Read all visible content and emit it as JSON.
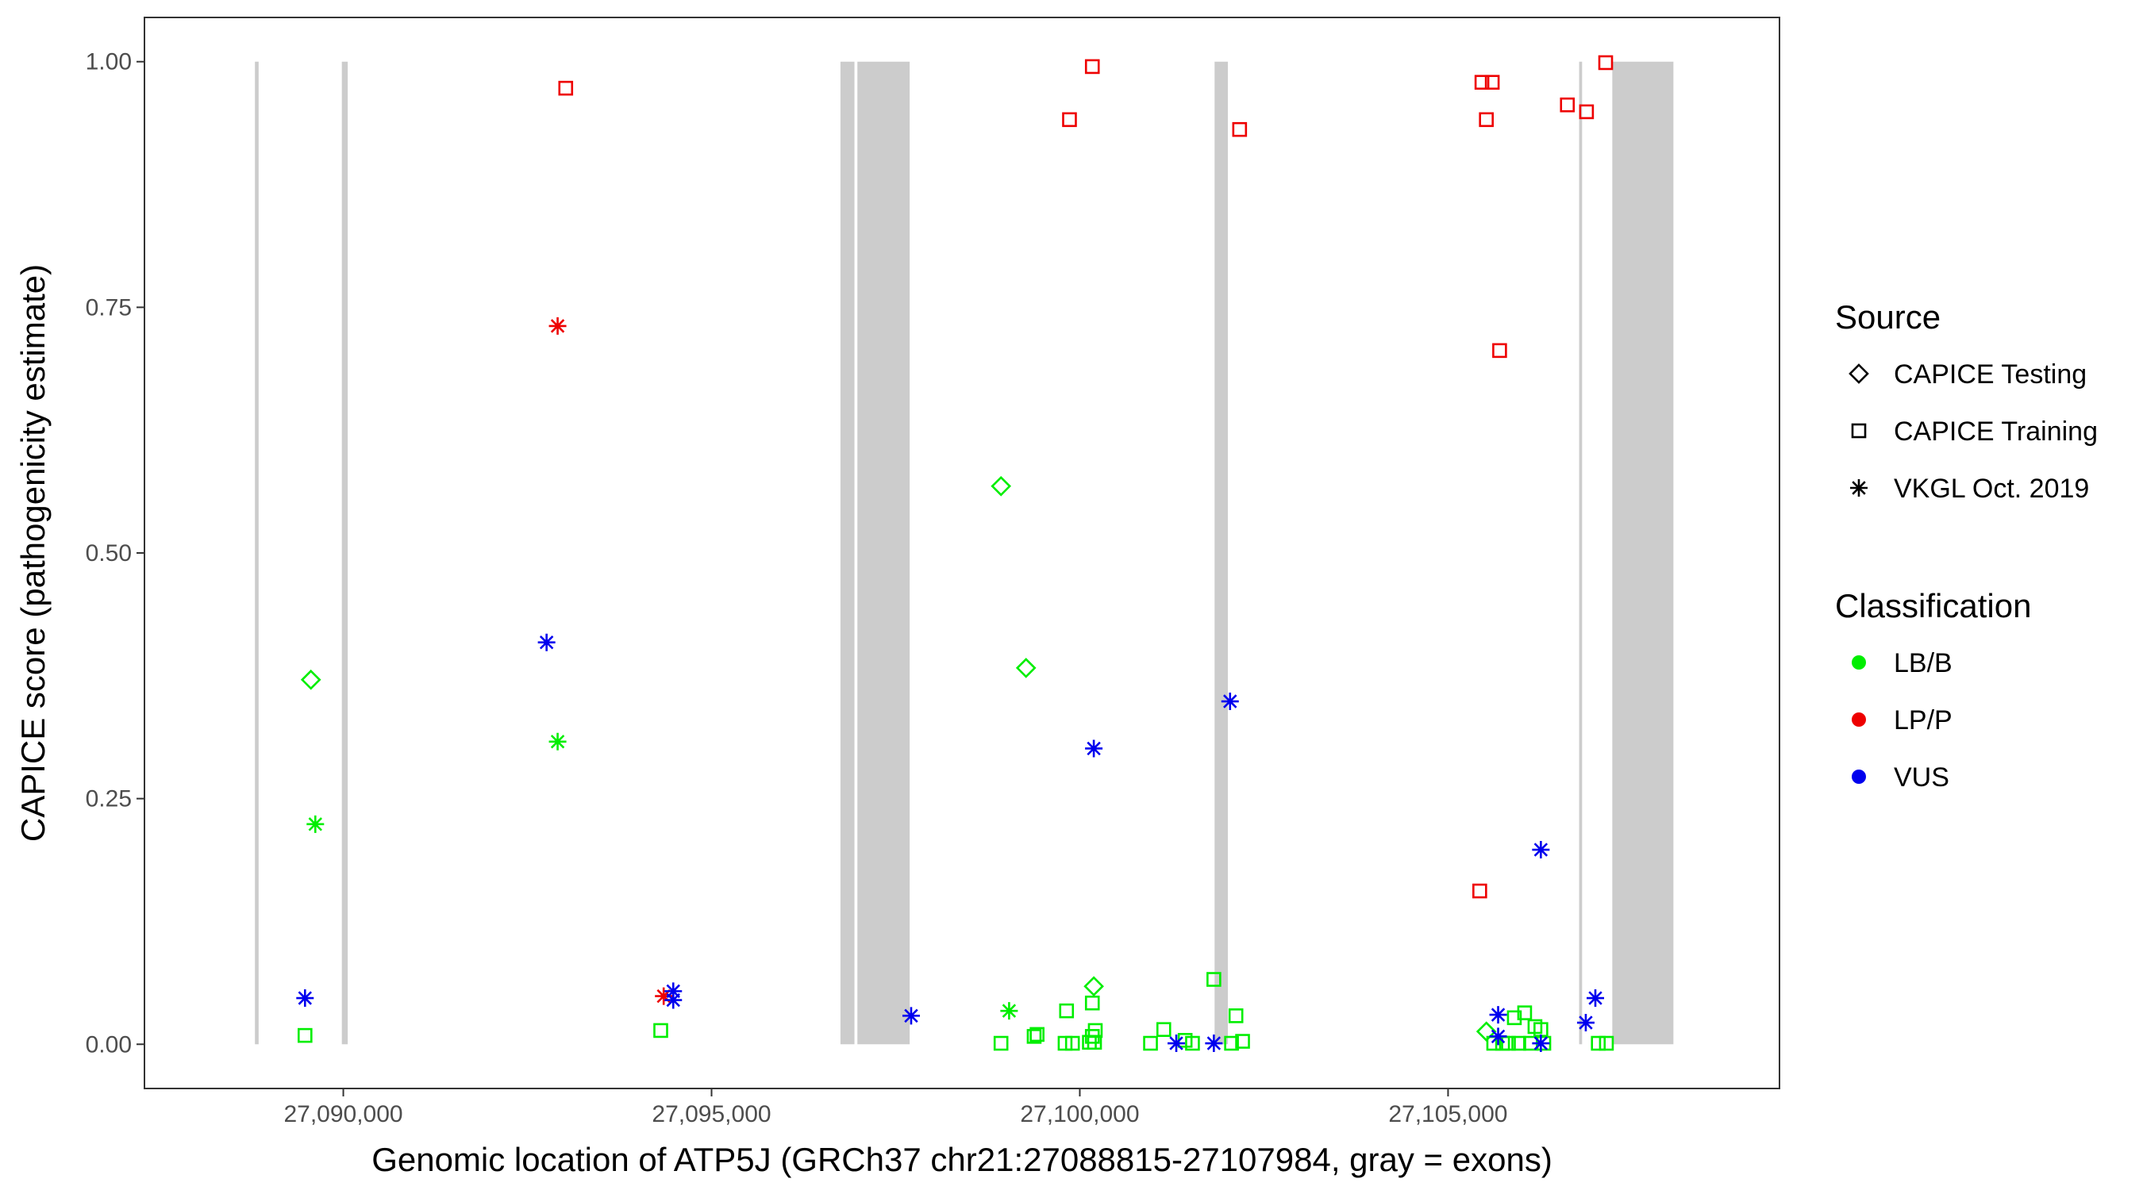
{
  "chart_data": {
    "type": "scatter",
    "xlabel": "Genomic location of ATP5J (GRCh37 chr21:27088815-27107984, gray = exons)",
    "ylabel": "CAPICE score (pathogenicity estimate)",
    "xlim": [
      27087300,
      27109500
    ],
    "ylim": [
      -0.045,
      1.045
    ],
    "x_ticks": [
      27090000,
      27095000,
      27100000,
      27105000
    ],
    "x_tick_labels": [
      "27,090,000",
      "27,095,000",
      "27,100,000",
      "27,105,000"
    ],
    "y_ticks": [
      0,
      0.25,
      0.5,
      0.75,
      1
    ],
    "y_tick_labels": [
      "0.00",
      "0.25",
      "0.50",
      "0.75",
      "1.00"
    ],
    "grid": false,
    "exons": [
      [
        27088800,
        27088850
      ],
      [
        27089980,
        27090060
      ],
      [
        27096750,
        27096940
      ],
      [
        27096980,
        27097690
      ],
      [
        27101830,
        27102010
      ],
      [
        27106780,
        27106820
      ],
      [
        27107230,
        27108060
      ]
    ],
    "legend": {
      "source": {
        "title": "Source",
        "entries": [
          {
            "shape": "diamond",
            "label": "CAPICE Testing"
          },
          {
            "shape": "square",
            "label": "CAPICE Training"
          },
          {
            "shape": "asterisk",
            "label": "VKGL Oct. 2019"
          }
        ]
      },
      "classification": {
        "title": "Classification",
        "entries": [
          {
            "key": "LB/B",
            "label": "LB/B",
            "color": "#00ee00"
          },
          {
            "key": "LP/P",
            "label": "LP/P",
            "color": "#ee0000"
          },
          {
            "key": "VUS",
            "label": "VUS",
            "color": "#0000ee"
          }
        ]
      },
      "placement": "right"
    },
    "points": [
      {
        "x": 27089560,
        "y": 0.371,
        "source": "diamond",
        "class": "LB/B"
      },
      {
        "x": 27089480,
        "y": 0.009,
        "source": "square",
        "class": "LB/B"
      },
      {
        "x": 27089620,
        "y": 0.224,
        "source": "asterisk",
        "class": "LB/B"
      },
      {
        "x": 27089480,
        "y": 0.047,
        "source": "asterisk",
        "class": "VUS"
      },
      {
        "x": 27093020,
        "y": 0.973,
        "source": "square",
        "class": "LP/P"
      },
      {
        "x": 27092910,
        "y": 0.731,
        "source": "asterisk",
        "class": "LP/P"
      },
      {
        "x": 27092760,
        "y": 0.409,
        "source": "asterisk",
        "class": "VUS"
      },
      {
        "x": 27092910,
        "y": 0.308,
        "source": "asterisk",
        "class": "LB/B"
      },
      {
        "x": 27094310,
        "y": 0.014,
        "source": "square",
        "class": "LB/B"
      },
      {
        "x": 27094350,
        "y": 0.049,
        "source": "asterisk",
        "class": "LP/P"
      },
      {
        "x": 27094480,
        "y": 0.054,
        "source": "asterisk",
        "class": "VUS"
      },
      {
        "x": 27094480,
        "y": 0.045,
        "source": "asterisk",
        "class": "VUS"
      },
      {
        "x": 27097710,
        "y": 0.029,
        "source": "asterisk",
        "class": "VUS"
      },
      {
        "x": 27098930,
        "y": 0.568,
        "source": "diamond",
        "class": "LB/B"
      },
      {
        "x": 27099270,
        "y": 0.383,
        "source": "diamond",
        "class": "LB/B"
      },
      {
        "x": 27099040,
        "y": 0.034,
        "source": "asterisk",
        "class": "LB/B"
      },
      {
        "x": 27098930,
        "y": 0.001,
        "source": "square",
        "class": "LB/B"
      },
      {
        "x": 27099380,
        "y": 0.008,
        "source": "square",
        "class": "LB/B"
      },
      {
        "x": 27099420,
        "y": 0.01,
        "source": "square",
        "class": "LB/B"
      },
      {
        "x": 27099820,
        "y": 0.034,
        "source": "square",
        "class": "LB/B"
      },
      {
        "x": 27099800,
        "y": 0.001,
        "source": "square",
        "class": "LB/B"
      },
      {
        "x": 27099900,
        "y": 0.001,
        "source": "square",
        "class": "LB/B"
      },
      {
        "x": 27099860,
        "y": 0.941,
        "source": "square",
        "class": "LP/P"
      },
      {
        "x": 27100170,
        "y": 0.995,
        "source": "square",
        "class": "LP/P"
      },
      {
        "x": 27100190,
        "y": 0.059,
        "source": "diamond",
        "class": "LB/B"
      },
      {
        "x": 27100170,
        "y": 0.042,
        "source": "square",
        "class": "LB/B"
      },
      {
        "x": 27100210,
        "y": 0.014,
        "source": "square",
        "class": "LB/B"
      },
      {
        "x": 27100170,
        "y": 0.008,
        "source": "square",
        "class": "LB/B"
      },
      {
        "x": 27100130,
        "y": 0.002,
        "source": "square",
        "class": "LB/B"
      },
      {
        "x": 27100200,
        "y": 0.002,
        "source": "square",
        "class": "LB/B"
      },
      {
        "x": 27100190,
        "y": 0.301,
        "source": "asterisk",
        "class": "VUS"
      },
      {
        "x": 27100960,
        "y": 0.001,
        "source": "square",
        "class": "LB/B"
      },
      {
        "x": 27101140,
        "y": 0.015,
        "source": "square",
        "class": "LB/B"
      },
      {
        "x": 27101430,
        "y": 0.004,
        "source": "square",
        "class": "LB/B"
      },
      {
        "x": 27101530,
        "y": 0.001,
        "source": "square",
        "class": "LB/B"
      },
      {
        "x": 27101820,
        "y": 0.066,
        "source": "square",
        "class": "LB/B"
      },
      {
        "x": 27101310,
        "y": 0.001,
        "source": "asterisk",
        "class": "VUS"
      },
      {
        "x": 27101820,
        "y": 0.001,
        "source": "asterisk",
        "class": "VUS"
      },
      {
        "x": 27102120,
        "y": 0.029,
        "source": "square",
        "class": "LB/B"
      },
      {
        "x": 27102060,
        "y": 0.001,
        "source": "square",
        "class": "LB/B"
      },
      {
        "x": 27102210,
        "y": 0.003,
        "source": "square",
        "class": "LB/B"
      },
      {
        "x": 27102040,
        "y": 0.349,
        "source": "asterisk",
        "class": "VUS"
      },
      {
        "x": 27102170,
        "y": 0.931,
        "source": "square",
        "class": "LP/P"
      },
      {
        "x": 27105460,
        "y": 0.979,
        "source": "square",
        "class": "LP/P"
      },
      {
        "x": 27105600,
        "y": 0.979,
        "source": "square",
        "class": "LP/P"
      },
      {
        "x": 27105520,
        "y": 0.941,
        "source": "square",
        "class": "LP/P"
      },
      {
        "x": 27105700,
        "y": 0.706,
        "source": "square",
        "class": "LP/P"
      },
      {
        "x": 27105430,
        "y": 0.156,
        "source": "square",
        "class": "LP/P"
      },
      {
        "x": 27106620,
        "y": 0.956,
        "source": "square",
        "class": "LP/P"
      },
      {
        "x": 27106880,
        "y": 0.949,
        "source": "square",
        "class": "LP/P"
      },
      {
        "x": 27107140,
        "y": 0.999,
        "source": "square",
        "class": "LP/P"
      },
      {
        "x": 27105520,
        "y": 0.013,
        "source": "diamond",
        "class": "LB/B"
      },
      {
        "x": 27105620,
        "y": 0.001,
        "source": "square",
        "class": "LB/B"
      },
      {
        "x": 27105740,
        "y": 0.001,
        "source": "square",
        "class": "LB/B"
      },
      {
        "x": 27105820,
        "y": 0.001,
        "source": "square",
        "class": "LB/B"
      },
      {
        "x": 27105900,
        "y": 0.027,
        "source": "square",
        "class": "LB/B"
      },
      {
        "x": 27105960,
        "y": 0.001,
        "source": "square",
        "class": "LB/B"
      },
      {
        "x": 27106040,
        "y": 0.032,
        "source": "square",
        "class": "LB/B"
      },
      {
        "x": 27106120,
        "y": 0.001,
        "source": "square",
        "class": "LB/B"
      },
      {
        "x": 27106180,
        "y": 0.018,
        "source": "square",
        "class": "LB/B"
      },
      {
        "x": 27106260,
        "y": 0.015,
        "source": "square",
        "class": "LB/B"
      },
      {
        "x": 27106300,
        "y": 0.001,
        "source": "square",
        "class": "LB/B"
      },
      {
        "x": 27107040,
        "y": 0.001,
        "source": "square",
        "class": "LB/B"
      },
      {
        "x": 27107150,
        "y": 0.001,
        "source": "square",
        "class": "LB/B"
      },
      {
        "x": 27105680,
        "y": 0.03,
        "source": "asterisk",
        "class": "VUS"
      },
      {
        "x": 27105680,
        "y": 0.008,
        "source": "asterisk",
        "class": "VUS"
      },
      {
        "x": 27106260,
        "y": 0.198,
        "source": "asterisk",
        "class": "VUS"
      },
      {
        "x": 27106260,
        "y": 0.001,
        "source": "asterisk",
        "class": "VUS"
      },
      {
        "x": 27106870,
        "y": 0.022,
        "source": "asterisk",
        "class": "VUS"
      },
      {
        "x": 27107000,
        "y": 0.047,
        "source": "asterisk",
        "class": "VUS"
      }
    ]
  }
}
